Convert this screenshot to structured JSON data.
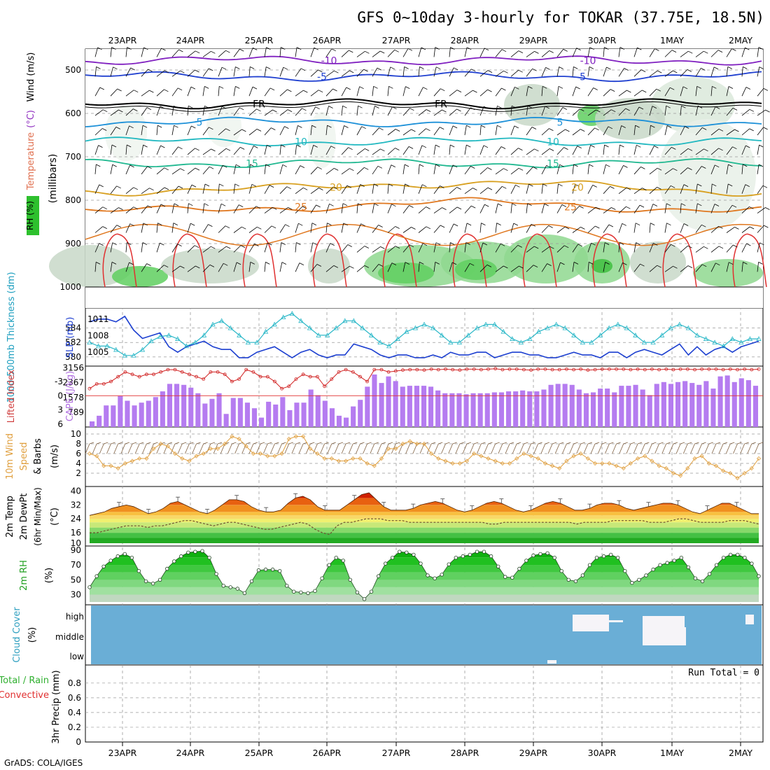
{
  "title": "GFS 0~10day 3-hourly for TOKAR (37.75E, 18.5N)",
  "credit": "GrADS: COLA/IGES",
  "colors": {
    "tdot_line": "#1c3fd0",
    "thick_line": "#2bb8c8",
    "cape_bar": "#b57cf0",
    "li_line": "#d02020",
    "wind_line": "#e0a040",
    "cloud_bg": "#6aaed6",
    "temp_fill": "#f07820",
    "rh_fill": "#1cc21c"
  },
  "chart_data": [
    {
      "id": "profile",
      "type": "contour",
      "ylabel": "(millibars)",
      "legend_labels": [
        "RH (%)",
        "Temperature",
        "(°C)",
        "Wind (m/s)"
      ],
      "y_ticks": [
        "500",
        "600",
        "700",
        "800",
        "900",
        "1000"
      ],
      "x_dates": [
        "23APR",
        "24APR",
        "25APR",
        "26APR",
        "27APR",
        "28APR",
        "29APR",
        "30APR",
        "1MAY",
        "2MAY"
      ],
      "isotherms": [
        {
          "label": "-10",
          "color": "#8020c0",
          "mb": 478
        },
        {
          "label": "-5",
          "color": "#2040d0",
          "mb": 515
        },
        {
          "label": "FR",
          "color": "#000000",
          "mb": 578
        },
        {
          "label": "5",
          "color": "#1c90d8",
          "mb": 620
        },
        {
          "label": "10",
          "color": "#20b8c0",
          "mb": 665
        },
        {
          "label": "15",
          "color": "#20b890",
          "mb": 715
        },
        {
          "label": "20",
          "color": "#d8a020",
          "mb": 770
        },
        {
          "label": "25",
          "color": "#e07820",
          "mb": 815
        }
      ]
    },
    {
      "id": "slp",
      "type": "line",
      "left_label": "1000-500mb Thickness (dm)",
      "right_label": "SLP (mb)",
      "left_ticks": [
        "584",
        "582",
        "580"
      ],
      "right_ticks": [
        "1011",
        "1008",
        "1005"
      ],
      "series": [
        {
          "name": "SLP",
          "values": [
            1010.5,
            1011,
            1011,
            1010.5,
            1011.5,
            1009,
            1007.5,
            1008,
            1008.5,
            1006,
            1005,
            1006,
            1006.5,
            1007,
            1006,
            1005.5,
            1005.5,
            1004,
            1004,
            1005,
            1005.5,
            1006,
            1005,
            1004,
            1005,
            1005.5,
            1004.5,
            1004,
            1004.5,
            1004.5,
            1006.5,
            1006,
            1005.5,
            1004.5,
            1004,
            1004.5,
            1004.5,
            1004,
            1004,
            1004.5,
            1004,
            1005,
            1004.5,
            1004.5,
            1005,
            1005,
            1004,
            1004.5,
            1005,
            1005,
            1004.5,
            1004.5,
            1004,
            1004,
            1004.5,
            1005,
            1004.5,
            1004.5,
            1004,
            1005,
            1005,
            1004,
            1005,
            1005.5,
            1005,
            1004.5,
            1005.5,
            1006.5,
            1004.5,
            1006,
            1004.5,
            1005.5,
            1006,
            1005,
            1006,
            1006.5,
            1007
          ]
        },
        {
          "name": "Thickness",
          "values": [
            582,
            581.5,
            581.5,
            581,
            580.2,
            580.2,
            581,
            582.2,
            582.8,
            583,
            582.5,
            581.5,
            582,
            583,
            584.5,
            585,
            584,
            583,
            582,
            582,
            583.5,
            584.5,
            585.5,
            586,
            585,
            584,
            583,
            583,
            584,
            585,
            585,
            584,
            583,
            582,
            581.5,
            582.5,
            583.5,
            584,
            584.5,
            584,
            583,
            582,
            582,
            583,
            584,
            584.5,
            584.5,
            583.5,
            582.5,
            582,
            582.5,
            583.5,
            584,
            584.5,
            584,
            583,
            582,
            582,
            583,
            584,
            584.5,
            584,
            583,
            582,
            582,
            583,
            584,
            584.5,
            584,
            583,
            582.5,
            582,
            581.5,
            582.5,
            582,
            582.5,
            582.5
          ]
        }
      ]
    },
    {
      "id": "cape",
      "type": "bar+line",
      "left_label": "Lifted Index",
      "right_label": "CAPE (J/kg)",
      "left_ticks": [
        "-3",
        "0",
        "3",
        "6"
      ],
      "right_ticks": [
        "3156",
        "2367",
        "1578",
        "789"
      ],
      "cape_values": [
        300,
        600,
        1150,
        1150,
        1650,
        1400,
        1150,
        1300,
        1400,
        1600,
        1900,
        2300,
        2300,
        2250,
        2100,
        1800,
        1250,
        1500,
        1800,
        700,
        1550,
        1550,
        1300,
        1000,
        500,
        1350,
        1200,
        1600,
        900,
        1300,
        1300,
        2000,
        1700,
        1400,
        1000,
        600,
        500,
        1100,
        1450,
        2150,
        2800,
        2350,
        2700,
        2450,
        2150,
        2200,
        2200,
        2200,
        2150,
        1950,
        1800,
        1800,
        1800,
        1750,
        1800,
        1800,
        1800,
        1850,
        1850,
        1900,
        1900,
        1950,
        1900,
        1900,
        2000,
        2250,
        2300,
        2300,
        2250,
        2000,
        1800,
        1850,
        2050,
        2050,
        1850,
        2200,
        2200,
        2250,
        2000,
        1700,
        2300,
        2400,
        2300,
        2400,
        2450,
        2350,
        2250,
        2450,
        2050,
        2700,
        2750,
        2400,
        2600,
        2500,
        2200
      ],
      "li_values": [
        -1.5,
        -2.5,
        -2.5,
        -3,
        -4,
        -5,
        -4.5,
        -4,
        -4.5,
        -4.5,
        -5,
        -5.5,
        -5.5,
        -5,
        -4.5,
        -4,
        -3.5,
        -5,
        -5,
        -4.5,
        -3,
        -3.5,
        -5.5,
        -5,
        -4,
        -4,
        -3,
        -1.5,
        -2,
        -3.5,
        -4.5,
        -4,
        -4,
        -2,
        -3.5,
        -5,
        -5.5,
        -5,
        -4,
        -3,
        -5.5,
        -5.5,
        -5,
        -5.2,
        -5.4,
        -5.5,
        -5.5,
        -5.4,
        -5.6,
        -5.5,
        -5.6,
        -5.5,
        -5.4,
        -5.6,
        -5.6,
        -5.5,
        -5.6,
        -5.7,
        -5.5,
        -5.6,
        -5.6,
        -5.5,
        -5.4,
        -5.6,
        -5.6,
        -5.5,
        -5.5,
        -5.6,
        -5.5,
        -5.6,
        -5.4,
        -5.5,
        -5.6,
        -5.6,
        -5.6,
        -5.6,
        -5.5,
        -5.6,
        -5.5,
        -5.6,
        -5.5,
        -5.6,
        -5.5,
        -5.6,
        -5.6,
        -5.5,
        -5.6,
        -5.6,
        -5.6,
        -5.5,
        -5.6,
        -5.5,
        -5.6,
        -5.5,
        -5.6
      ]
    },
    {
      "id": "wind",
      "type": "line",
      "left_label": "10m Wind Speed & Barbs",
      "unit": "(m/s)",
      "y_ticks": [
        "10",
        "8",
        "6",
        "4",
        "2"
      ],
      "values": [
        6,
        5.5,
        3.5,
        3.5,
        3,
        4,
        4.5,
        5,
        5,
        7,
        8,
        7.5,
        6,
        5,
        4.5,
        5.5,
        6,
        7,
        7,
        8,
        9.5,
        9,
        7.5,
        6,
        6,
        5.5,
        5.5,
        6,
        9,
        9.5,
        9.5,
        7,
        6,
        5,
        5,
        4.5,
        4.5,
        5,
        5,
        4,
        3.5,
        5,
        7,
        7,
        8,
        8.5,
        8,
        8,
        6,
        5,
        4.5,
        4,
        4,
        4.5,
        6,
        5.5,
        5,
        4.5,
        4,
        4,
        5,
        6,
        5.5,
        5,
        4,
        3.5,
        3,
        4.5,
        5.5,
        6,
        5,
        4,
        4,
        4,
        3.5,
        3,
        4,
        5,
        5.5,
        4.5,
        3.5,
        3,
        2,
        1.5,
        3,
        5,
        5.5,
        4,
        3.5,
        2.5,
        2,
        1,
        2,
        3,
        5
      ]
    },
    {
      "id": "temp",
      "type": "area",
      "left_label": "2m Temp 2m DewPt (6hr Min/Max)",
      "unit": "(°C)",
      "y_ticks": [
        "40",
        "32",
        "24",
        "16",
        "10"
      ],
      "temp": [
        26,
        27,
        28,
        30,
        31,
        32,
        31,
        29,
        27,
        28,
        30,
        33,
        34,
        32,
        30,
        28,
        27,
        29,
        32,
        35,
        35,
        34,
        31,
        29,
        28,
        28,
        29,
        33,
        36,
        37,
        35,
        31,
        29,
        29,
        29,
        32,
        35,
        38,
        39,
        35,
        31,
        29,
        29,
        29,
        30,
        32,
        33,
        34,
        33,
        31,
        29,
        28,
        29,
        31,
        33,
        34,
        33,
        31,
        29,
        28,
        29,
        31,
        33,
        34,
        33,
        31,
        29,
        29,
        30,
        32,
        33,
        33,
        32,
        30,
        29,
        30,
        31,
        32,
        33,
        33,
        32,
        30,
        28,
        27,
        29,
        31,
        33,
        33,
        31,
        29,
        27,
        27
      ],
      "dew": [
        16,
        16,
        17,
        18,
        19,
        20,
        20,
        20,
        19,
        20,
        20,
        21,
        22,
        23,
        23,
        22,
        21,
        20,
        21,
        22,
        22,
        21,
        20,
        19,
        18,
        18,
        19,
        20,
        21,
        22,
        21,
        18,
        16,
        15,
        20,
        22,
        22,
        23,
        24,
        24,
        24,
        23,
        23,
        23,
        22,
        22,
        22,
        22,
        22,
        22,
        22,
        22,
        22,
        22,
        22,
        21,
        21,
        22,
        22,
        22,
        22,
        22,
        22,
        22,
        22,
        22,
        22,
        21,
        22,
        22,
        22,
        22,
        23,
        23,
        23,
        23,
        23,
        22,
        22,
        22,
        23,
        24,
        24,
        23,
        22,
        22,
        22,
        22,
        23,
        23,
        23,
        22,
        21
      ]
    },
    {
      "id": "rh",
      "type": "area",
      "left_label": "2m RH",
      "unit": "(%)",
      "y_ticks": [
        "90",
        "70",
        "50",
        "30"
      ],
      "values": [
        40,
        55,
        68,
        76,
        82,
        85,
        80,
        62,
        48,
        45,
        50,
        65,
        75,
        82,
        87,
        88,
        89,
        80,
        58,
        42,
        40,
        38,
        32,
        48,
        63,
        64,
        64,
        62,
        42,
        34,
        33,
        32,
        35,
        52,
        70,
        80,
        76,
        50,
        33,
        24,
        34,
        55,
        72,
        80,
        88,
        87,
        84,
        72,
        56,
        52,
        57,
        71,
        80,
        82,
        84,
        88,
        88,
        82,
        68,
        54,
        53,
        65,
        76,
        83,
        85,
        86,
        80,
        62,
        50,
        48,
        56,
        70,
        80,
        82,
        84,
        80,
        62,
        46,
        50,
        56,
        64,
        70,
        73,
        76,
        80,
        67,
        52,
        48,
        58,
        70,
        80,
        84,
        84,
        80,
        72,
        55
      ]
    },
    {
      "id": "cloud",
      "type": "heatmap",
      "left_label": "Cloud Cover",
      "unit": "(%)",
      "levels": [
        "high",
        "middle",
        "low"
      ]
    },
    {
      "id": "precip",
      "type": "bar",
      "left_label": "Total / Rain Convective",
      "left_label_rain": "Total / Rain",
      "left_label_convective": "Convective",
      "ylabel": "3hr Precip (mm)",
      "run_total": "Run Total = 0",
      "y_ticks": [
        "0.8",
        "0.6",
        "0.4",
        "0.2",
        "0"
      ],
      "x_dates": [
        "23APR",
        "24APR",
        "25APR",
        "26APR",
        "27APR",
        "28APR",
        "29APR",
        "30APR",
        "1MAY",
        "2MAY"
      ]
    }
  ]
}
